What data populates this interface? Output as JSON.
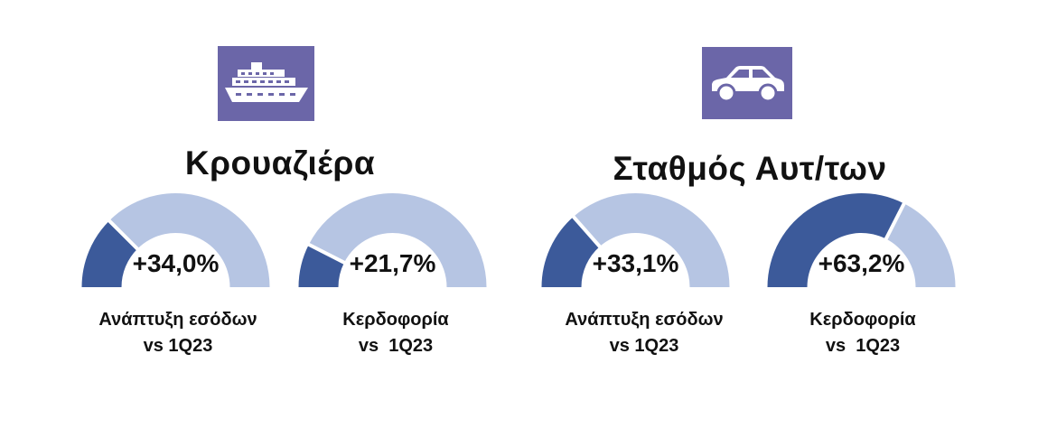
{
  "colors": {
    "filled": "#3c5a9a",
    "remaining": "#b6c5e3",
    "icon_bg": "#6b66a8"
  },
  "sections": [
    {
      "title": "Κρουαζιέρα",
      "icon": "cruise-ship-icon"
    },
    {
      "title": "Σταθμός Αυτ/των",
      "icon": "car-icon"
    }
  ],
  "chart_data": [
    {
      "type": "gauge",
      "section": "Κρουαζιέρα",
      "value_label": "+34,0%",
      "fill_fraction": 0.25,
      "label_line1": "Ανάπτυξη εσόδων",
      "label_line2": "vs 1Q23"
    },
    {
      "type": "gauge",
      "section": "Κρουαζιέρα",
      "value_label": "+21,7%",
      "fill_fraction": 0.15,
      "label_line1": "Κερδοφορία",
      "label_line2": "vs  1Q23"
    },
    {
      "type": "gauge",
      "section": "Σταθμός Αυτ/των",
      "value_label": "+33,1%",
      "fill_fraction": 0.27,
      "label_line1": "Ανάπτυξη εσόδων",
      "label_line2": "vs 1Q23"
    },
    {
      "type": "gauge",
      "section": "Σταθμός Αυτ/των",
      "value_label": "+63,2%",
      "fill_fraction": 0.65,
      "label_line1": "Κερδοφορία",
      "label_line2": "vs  1Q23"
    }
  ]
}
